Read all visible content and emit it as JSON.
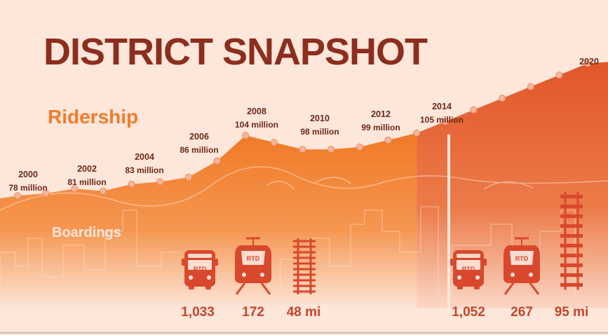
{
  "title": "DISTRICT SNAPSHOT",
  "ridership_label": "Ridership",
  "boardings_label": "Boardings",
  "colors": {
    "background": "#fde6da",
    "title": "#8c2e1e",
    "ridership_area": "#f07a26",
    "future_area": "#e2562b",
    "icon": "#d9482c",
    "text": "#6b2a1a"
  },
  "chart_data": {
    "type": "area",
    "title": "DISTRICT SNAPSHOT",
    "ylabel": "Ridership",
    "ylim": [
      50,
      140
    ],
    "labeled_points": [
      {
        "year": "2000",
        "text": "78 million"
      },
      {
        "year": "2002",
        "text": "81 million"
      },
      {
        "year": "2004",
        "text": "83 million"
      },
      {
        "year": "2006",
        "text": "86 million"
      },
      {
        "year": "2008",
        "text": "104 million"
      },
      {
        "year": "2010",
        "text": "98 million"
      },
      {
        "year": "2012",
        "text": "99 million"
      },
      {
        "year": "2014",
        "text": "105 million"
      },
      {
        "year": "2020",
        "text": ""
      }
    ],
    "series": [
      {
        "values": [
          {
            "x": 2000,
            "y": 78
          },
          {
            "x": 2001,
            "y": 79
          },
          {
            "x": 2002,
            "y": 81
          },
          {
            "x": 2003,
            "y": 80
          },
          {
            "x": 2004,
            "y": 83
          },
          {
            "x": 2005,
            "y": 84
          },
          {
            "x": 2006,
            "y": 86
          },
          {
            "x": 2007,
            "y": 93
          },
          {
            "x": 2008,
            "y": 104
          },
          {
            "x": 2009,
            "y": 101
          },
          {
            "x": 2010,
            "y": 98
          },
          {
            "x": 2011,
            "y": 98
          },
          {
            "x": 2012,
            "y": 99
          },
          {
            "x": 2013,
            "y": 102
          },
          {
            "x": 2014,
            "y": 105
          }
        ]
      },
      {
        "values": [
          {
            "x": 2015,
            "y": 110
          },
          {
            "x": 2016,
            "y": 115
          },
          {
            "x": 2017,
            "y": 120
          },
          {
            "x": 2018,
            "y": 125
          },
          {
            "x": 2019,
            "y": 130
          },
          {
            "x": 2020,
            "y": 135
          }
        ]
      }
    ]
  },
  "boardings": {
    "period_2014": [
      {
        "icon": "bus-icon",
        "value": "1,033"
      },
      {
        "icon": "light-rail-icon",
        "value": "172"
      },
      {
        "icon": "rail-track-icon",
        "value": "48 mi"
      }
    ],
    "period_2020": [
      {
        "icon": "bus-icon",
        "value": "1,052"
      },
      {
        "icon": "light-rail-icon",
        "value": "267"
      },
      {
        "icon": "rail-track-icon",
        "value": "95 mi"
      }
    ]
  },
  "icon_text": "RTD"
}
